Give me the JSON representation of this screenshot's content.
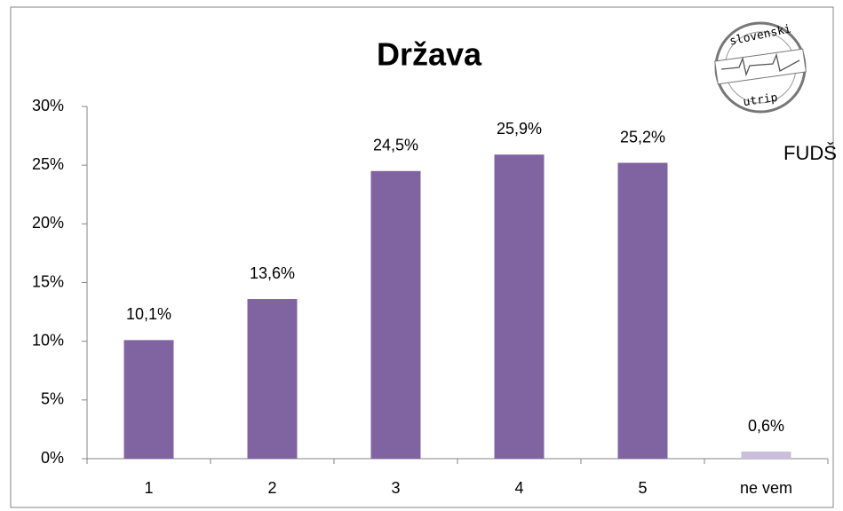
{
  "chart_data": {
    "type": "bar",
    "title": "Država",
    "categories": [
      "1",
      "2",
      "3",
      "4",
      "5",
      "ne vem"
    ],
    "values": [
      10.1,
      13.6,
      24.5,
      25.9,
      25.2,
      0.6
    ],
    "value_labels": [
      "10,1%",
      "13,6%",
      "24,5%",
      "25,9%",
      "25,2%",
      "0,6%"
    ],
    "colors": [
      "#8064a2",
      "#8064a2",
      "#8064a2",
      "#8064a2",
      "#8064a2",
      "#c9bedb"
    ],
    "ylim": [
      0,
      30
    ],
    "yticks": [
      {
        "value": 0,
        "label": "0%"
      },
      {
        "value": 5,
        "label": "5%"
      },
      {
        "value": 10,
        "label": "10%"
      },
      {
        "value": 15,
        "label": "15%"
      },
      {
        "value": 20,
        "label": "20%"
      },
      {
        "value": 25,
        "label": "25%"
      },
      {
        "value": 30,
        "label": "30%"
      }
    ],
    "grid": false,
    "logo": {
      "top": "slovenski",
      "bottom": "utrip",
      "label": "FUDŠ"
    }
  }
}
